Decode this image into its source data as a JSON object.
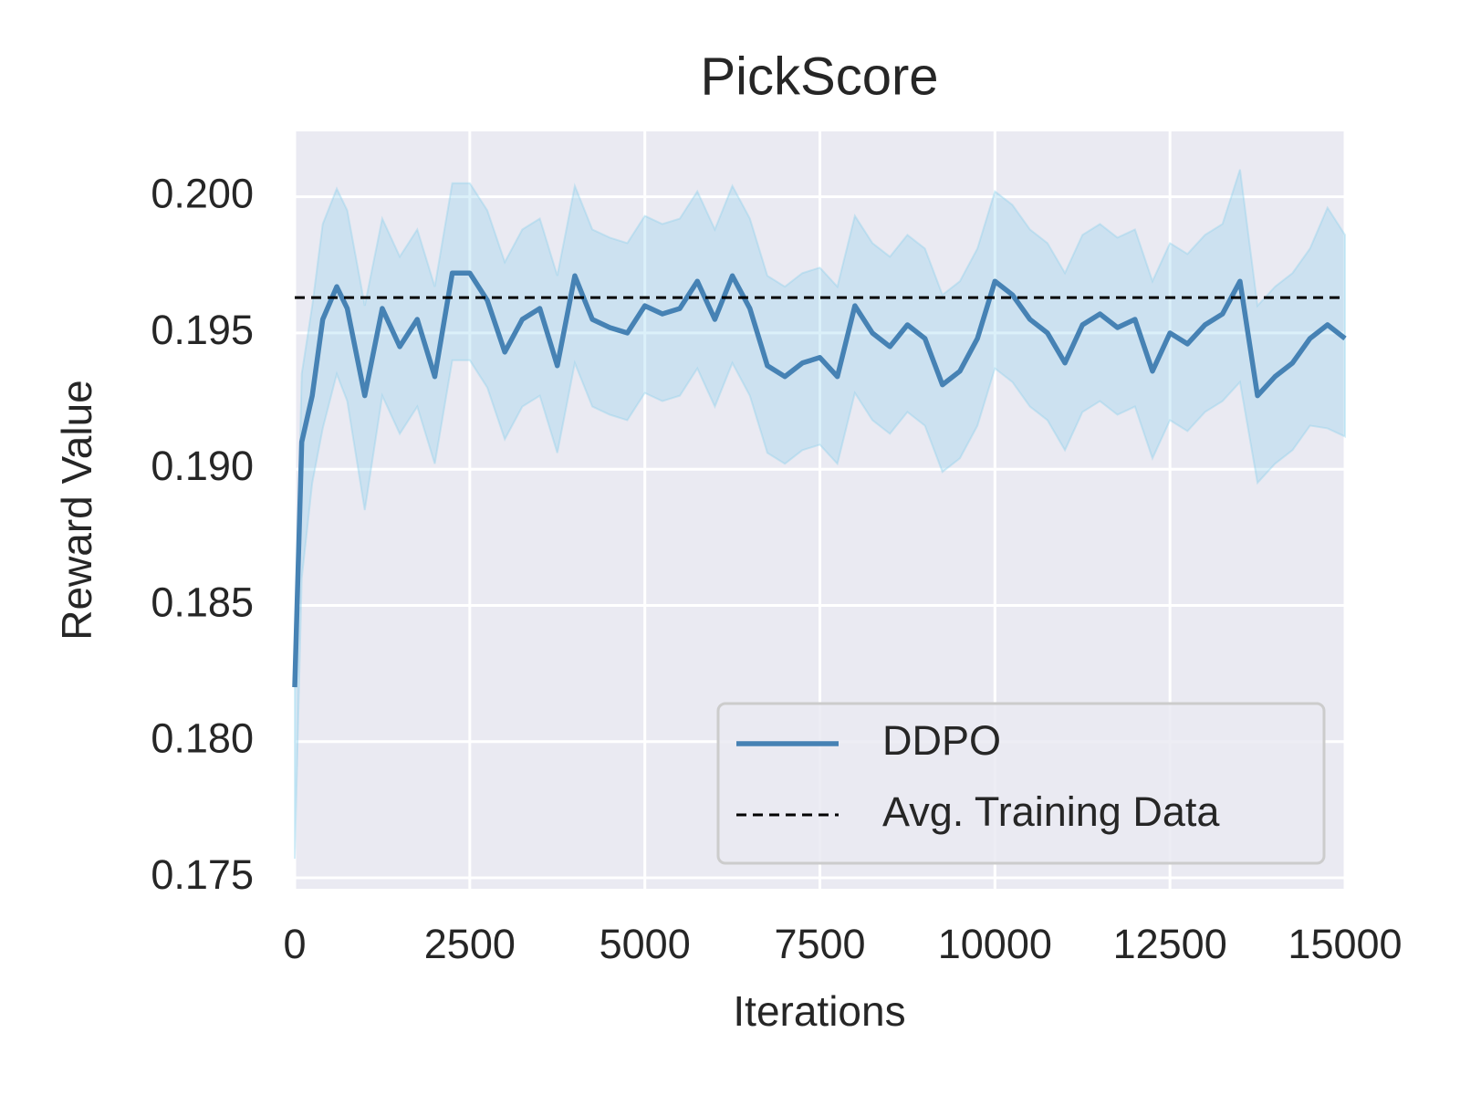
{
  "chart_data": {
    "type": "line",
    "title": "PickScore",
    "xlabel": "Iterations",
    "ylabel": "Reward Value",
    "xlim": [
      0,
      15000
    ],
    "ylim": [
      0.1746,
      0.2024
    ],
    "xticks": [
      0,
      2500,
      5000,
      7500,
      10000,
      12500,
      15000
    ],
    "yticks": [
      {
        "value": 0.175,
        "label": "0.175"
      },
      {
        "value": 0.18,
        "label": "0.180"
      },
      {
        "value": 0.185,
        "label": "0.185"
      },
      {
        "value": 0.19,
        "label": "0.190"
      },
      {
        "value": 0.195,
        "label": "0.195"
      },
      {
        "value": 0.2,
        "label": "0.200"
      }
    ],
    "grid": true,
    "legend": "lower right",
    "x": [
      0,
      100,
      250,
      400,
      600,
      750,
      1000,
      1250,
      1500,
      1750,
      2000,
      2250,
      2500,
      2750,
      3000,
      3250,
      3500,
      3750,
      4000,
      4250,
      4500,
      4750,
      5000,
      5250,
      5500,
      5750,
      6000,
      6250,
      6500,
      6750,
      7000,
      7250,
      7500,
      7750,
      8000,
      8250,
      8500,
      8750,
      9000,
      9250,
      9500,
      9750,
      10000,
      10250,
      10500,
      10750,
      11000,
      11250,
      11500,
      11750,
      12000,
      12250,
      12500,
      12750,
      13000,
      13250,
      13500,
      13750,
      14000,
      14250,
      14500,
      14750,
      15000
    ],
    "series": [
      {
        "name": "DDPO",
        "color": "#4682b4",
        "band_color": "#87ceeb",
        "values": [
          0.182,
          0.191,
          0.1927,
          0.1955,
          0.1967,
          0.1959,
          0.1927,
          0.1959,
          0.1945,
          0.1955,
          0.1934,
          0.1972,
          0.1972,
          0.1962,
          0.1943,
          0.1955,
          0.1959,
          0.1938,
          0.1971,
          0.1955,
          0.1952,
          0.195,
          0.196,
          0.1957,
          0.1959,
          0.1969,
          0.1955,
          0.1971,
          0.1959,
          0.1938,
          0.1934,
          0.1939,
          0.1941,
          0.1934,
          0.196,
          0.195,
          0.1945,
          0.1953,
          0.1948,
          0.1931,
          0.1936,
          0.1948,
          0.1969,
          0.1964,
          0.1955,
          0.195,
          0.1939,
          0.1953,
          0.1957,
          0.1952,
          0.1955,
          0.1936,
          0.195,
          0.1946,
          0.1953,
          0.1957,
          0.1969,
          0.1927,
          0.1934,
          0.1939,
          0.1948,
          0.1953,
          0.1948
        ],
        "upper": [
          0.1825,
          0.1935,
          0.196,
          0.199,
          0.2003,
          0.1995,
          0.196,
          0.1992,
          0.1978,
          0.1988,
          0.1967,
          0.2005,
          0.2005,
          0.1995,
          0.1976,
          0.1988,
          0.1992,
          0.1971,
          0.2004,
          0.1988,
          0.1985,
          0.1983,
          0.1993,
          0.199,
          0.1992,
          0.2002,
          0.1988,
          0.2004,
          0.1992,
          0.1971,
          0.1967,
          0.1972,
          0.1974,
          0.1967,
          0.1993,
          0.1983,
          0.1978,
          0.1986,
          0.1981,
          0.1964,
          0.1969,
          0.1981,
          0.2002,
          0.1997,
          0.1988,
          0.1983,
          0.1972,
          0.1986,
          0.199,
          0.1985,
          0.1988,
          0.1969,
          0.1983,
          0.1979,
          0.1986,
          0.199,
          0.201,
          0.196,
          0.1967,
          0.1972,
          0.1981,
          0.1996,
          0.1986
        ],
        "lower": [
          0.1757,
          0.186,
          0.1895,
          0.1915,
          0.1935,
          0.1925,
          0.1885,
          0.1927,
          0.1913,
          0.1923,
          0.1902,
          0.194,
          0.194,
          0.193,
          0.1911,
          0.1923,
          0.1927,
          0.1906,
          0.1939,
          0.1923,
          0.192,
          0.1918,
          0.1928,
          0.1925,
          0.1927,
          0.1937,
          0.1923,
          0.1939,
          0.1927,
          0.1906,
          0.1902,
          0.1907,
          0.1909,
          0.1902,
          0.1928,
          0.1918,
          0.1913,
          0.1921,
          0.1916,
          0.1899,
          0.1904,
          0.1916,
          0.1937,
          0.1932,
          0.1923,
          0.1918,
          0.1907,
          0.1921,
          0.1925,
          0.192,
          0.1923,
          0.1904,
          0.1918,
          0.1914,
          0.1921,
          0.1925,
          0.1932,
          0.1895,
          0.1902,
          0.1907,
          0.1916,
          0.1915,
          0.1912
        ]
      }
    ],
    "reference_line": {
      "name": "Avg. Training Data",
      "value": 0.1963,
      "color": "#000000"
    }
  }
}
